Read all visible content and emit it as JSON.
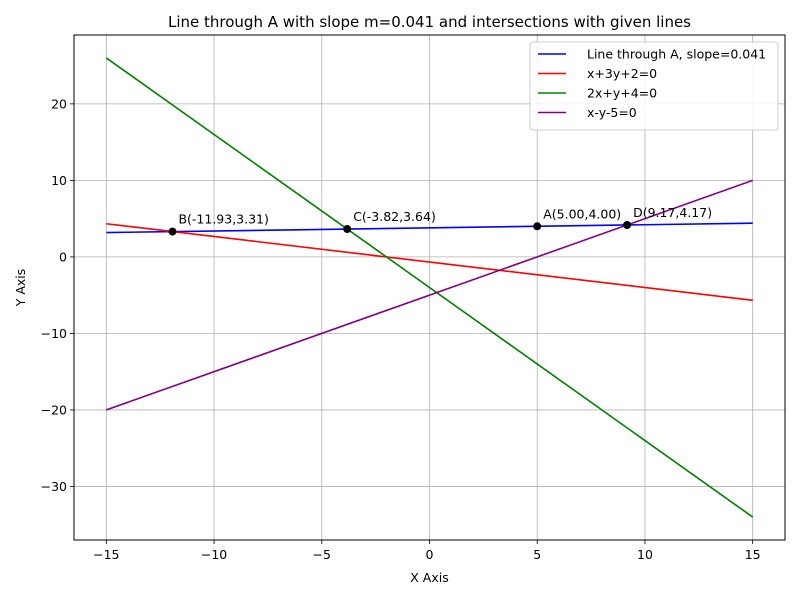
{
  "chart_data": {
    "type": "line",
    "title": "Line through A with slope m=0.041 and intersections with given lines",
    "xlabel": "X Axis",
    "ylabel": "Y Axis",
    "xlim": [
      -16.5,
      16.5
    ],
    "ylim": [
      -37,
      29
    ],
    "x_ticks": [
      -15,
      -10,
      -5,
      0,
      5,
      10,
      15
    ],
    "y_ticks": [
      -30,
      -20,
      -10,
      0,
      10,
      20
    ],
    "x_tick_labels": [
      "−15",
      "−10",
      "−5",
      "0",
      "5",
      "10",
      "15"
    ],
    "y_tick_labels": [
      "−30",
      "−20",
      "−10",
      "0",
      "10",
      "20"
    ],
    "grid": true,
    "legend_position": "top-right",
    "series": [
      {
        "name": "Line through A, slope=0.041",
        "color": "#0000ff",
        "x": [
          -15,
          15
        ],
        "y": [
          3.18,
          4.41
        ]
      },
      {
        "name": "x+3y+2=0",
        "color": "#ff0000",
        "x": [
          -15,
          15
        ],
        "y": [
          4.33,
          -5.67
        ]
      },
      {
        "name": "2x+y+4=0",
        "color": "#008000",
        "x": [
          -15,
          15
        ],
        "y": [
          26,
          -34
        ]
      },
      {
        "name": "x-y-5=0",
        "color": "#800080",
        "x": [
          -15,
          15
        ],
        "y": [
          -20,
          10
        ]
      }
    ],
    "points": [
      {
        "label": "A(5.00,4.00)",
        "x": 5.0,
        "y": 4.0
      },
      {
        "label": "B(-11.93,3.31)",
        "x": -11.93,
        "y": 3.31
      },
      {
        "label": "C(-3.82,3.64)",
        "x": -3.82,
        "y": 3.64
      },
      {
        "label": "D(9.17,4.17)",
        "x": 9.17,
        "y": 4.17
      }
    ],
    "point_color": "#000000"
  }
}
